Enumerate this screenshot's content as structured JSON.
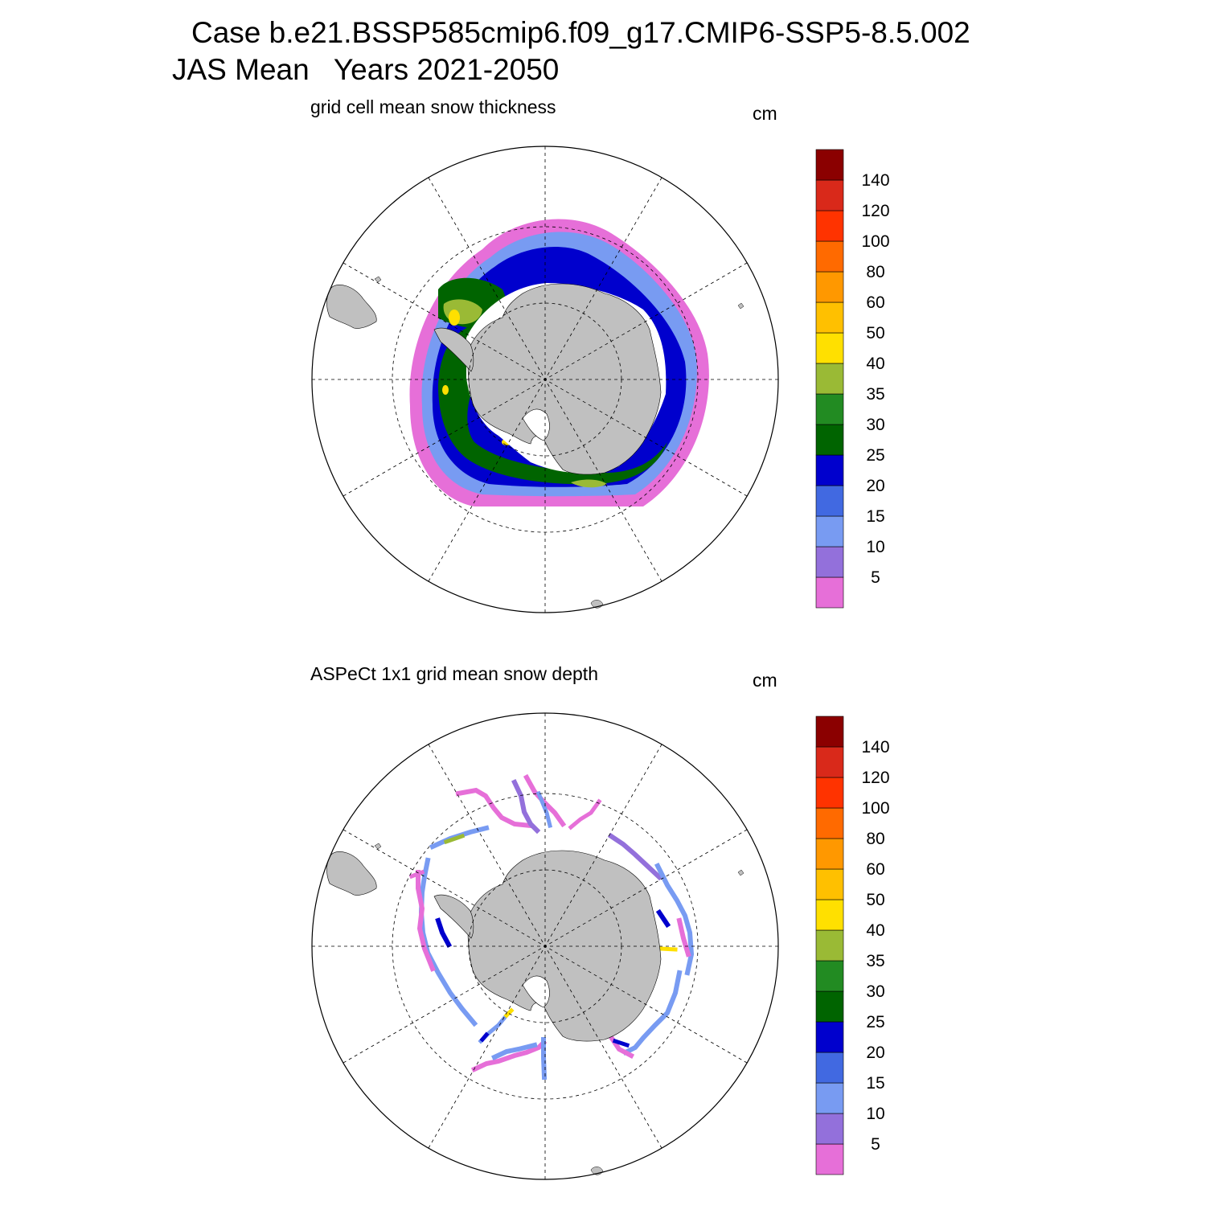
{
  "header": {
    "title_line1": "Case b.e21.BSSP585cmip6.f09_g17.CMIP6-SSP5-8.5.002",
    "title_line2": "JAS Mean   Years 2021-2050"
  },
  "panels": [
    {
      "title": "grid cell mean snow thickness",
      "units": "cm"
    },
    {
      "title": "ASPeCt 1x1 grid mean snow depth",
      "units": "cm"
    }
  ],
  "colorbar": {
    "tick_labels": [
      "5",
      "10",
      "15",
      "20",
      "25",
      "30",
      "35",
      "40",
      "50",
      "60",
      "80",
      "100",
      "120",
      "140"
    ],
    "colors": [
      "#e66fd8",
      "#9370db",
      "#789bf2",
      "#4169e1",
      "#0000cd",
      "#006400",
      "#228b22",
      "#9aba35",
      "#ffe000",
      "#ffc000",
      "#ff9800",
      "#ff6a00",
      "#ff3300",
      "#d9291a",
      "#8b0000"
    ]
  },
  "colors": {
    "land": "#c0c0c0",
    "grid": "#000000"
  }
}
